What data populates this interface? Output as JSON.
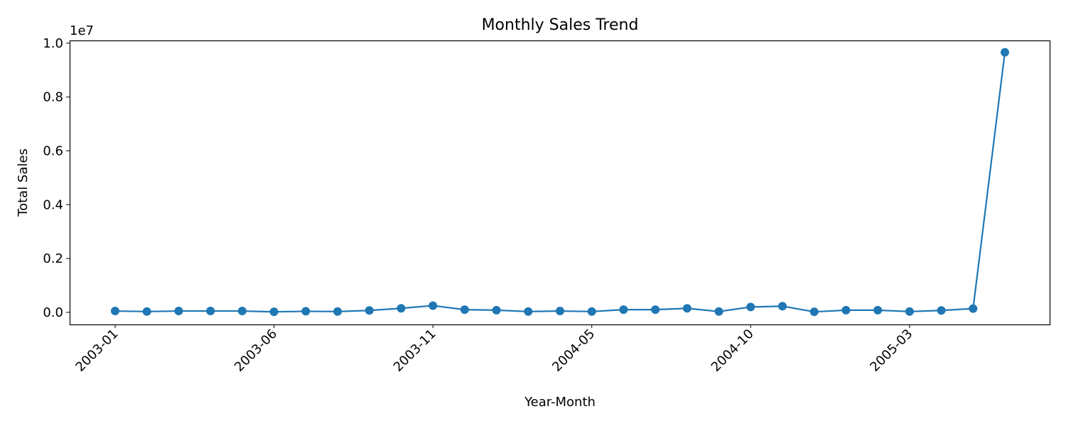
{
  "chart_data": {
    "type": "line",
    "title": "Monthly Sales Trend",
    "x_label": "Year-Month",
    "y_label": "Total Sales",
    "y_offset_label": "1e7",
    "categories": [
      "2003-01",
      null,
      null,
      null,
      null,
      "2003-06",
      null,
      null,
      null,
      null,
      "2003-11",
      null,
      null,
      null,
      null,
      "2004-05",
      null,
      null,
      null,
      null,
      "2004-10",
      null,
      null,
      null,
      null,
      "2005-03",
      null,
      null,
      null
    ],
    "series": [
      {
        "name": "Total Sales",
        "color": "#1f77b4",
        "values": [
          50000,
          30000,
          50000,
          50000,
          50000,
          20000,
          40000,
          30000,
          70000,
          150000,
          250000,
          100000,
          80000,
          30000,
          50000,
          30000,
          100000,
          100000,
          150000,
          30000,
          200000,
          230000,
          20000,
          80000,
          80000,
          30000,
          70000,
          140000,
          9660000
        ]
      }
    ],
    "ylim": [
      -450000,
      10100000
    ],
    "yticks": [
      {
        "value": 0,
        "label": "0.0"
      },
      {
        "value": 2000000,
        "label": "0.2"
      },
      {
        "value": 4000000,
        "label": "0.4"
      },
      {
        "value": 6000000,
        "label": "0.6"
      },
      {
        "value": 8000000,
        "label": "0.8"
      },
      {
        "value": 10000000,
        "label": "1.0"
      }
    ],
    "grid": false,
    "markers": true
  }
}
